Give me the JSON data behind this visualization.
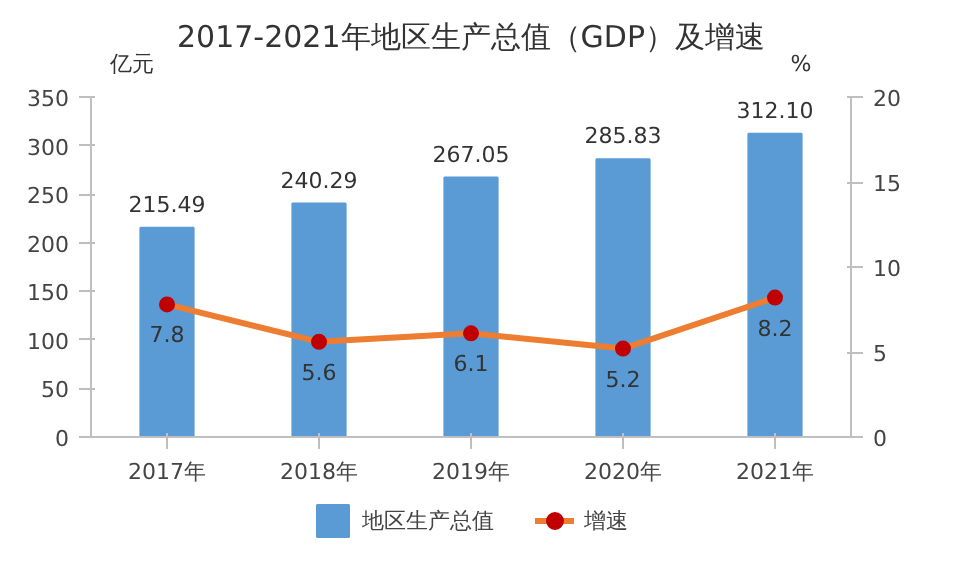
{
  "chart_data": {
    "type": "bar",
    "title": "2017-2021年地区生产总值（GDP）及增速",
    "categories": [
      "2017年",
      "2018年",
      "2019年",
      "2020年",
      "2021年"
    ],
    "ylabel": "亿元",
    "y2label": "%",
    "ylim": [
      0,
      350
    ],
    "yticks": [
      0,
      50,
      100,
      150,
      200,
      250,
      300,
      350
    ],
    "y2lim": [
      0,
      20
    ],
    "y2ticks": [
      0,
      5,
      10,
      15,
      20
    ],
    "grid": false,
    "legend": "bottom",
    "series": [
      {
        "name": "地区生产总值",
        "color": "#5b9bd5",
        "values": [
          215.49,
          240.29,
          267.05,
          285.83,
          312.1
        ],
        "value_labels": [
          "215.49",
          "240.29",
          "267.05",
          "285.83",
          "312.10"
        ]
      },
      {
        "name": "增速",
        "type": "line",
        "axis": "y2",
        "color": "#ed7d31",
        "marker": "circle",
        "values": [
          7.8,
          5.6,
          6.1,
          5.2,
          8.2
        ],
        "value_labels": [
          "7.8",
          "5.6",
          "6.1",
          "5.2",
          "8.2"
        ]
      }
    ]
  }
}
